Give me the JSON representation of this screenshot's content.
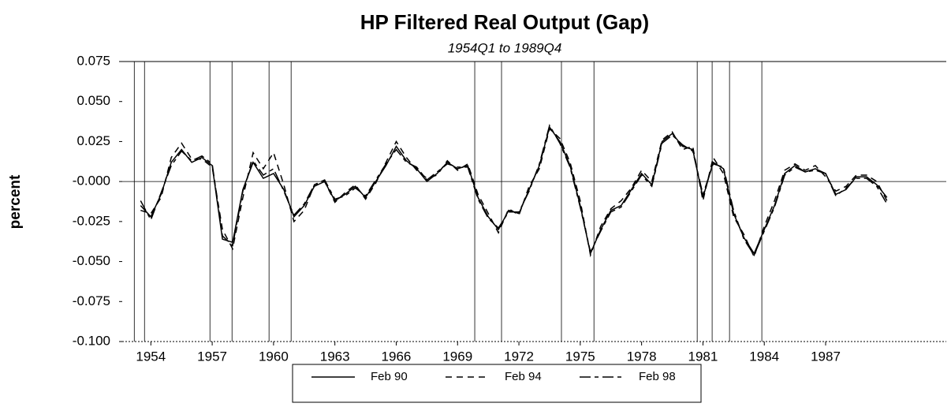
{
  "chart_data": {
    "type": "line",
    "title": "HP Filtered Real Output (Gap)",
    "subtitle": "1954Q1 to 1989Q4",
    "y_label": "percent",
    "x": [
      1953.5,
      1954,
      1954.5,
      1955,
      1955.5,
      1956,
      1956.5,
      1957,
      1957.5,
      1958,
      1958.5,
      1959,
      1959.5,
      1960,
      1960.5,
      1961,
      1961.5,
      1962,
      1962.5,
      1963,
      1963.5,
      1964,
      1964.5,
      1965,
      1965.5,
      1966,
      1966.5,
      1967,
      1967.5,
      1968,
      1968.5,
      1969,
      1969.5,
      1970,
      1970.5,
      1971,
      1971.5,
      1972,
      1972.5,
      1973,
      1973.5,
      1974,
      1974.5,
      1975,
      1975.5,
      1976,
      1976.5,
      1977,
      1977.5,
      1978,
      1978.5,
      1979,
      1979.5,
      1980,
      1980.5,
      1981,
      1981.5,
      1982,
      1982.5,
      1983,
      1983.5,
      1984,
      1984.5,
      1985,
      1985.5,
      1986,
      1986.5,
      1987,
      1987.5,
      1988,
      1988.5,
      1989,
      1989.5,
      1990
    ],
    "series": [
      {
        "name": "Feb 90",
        "color": "#000000",
        "dash": "solid",
        "values": [
          -0.015,
          -0.022,
          -0.008,
          0.012,
          0.02,
          0.012,
          0.015,
          0.01,
          -0.036,
          -0.038,
          -0.005,
          0.012,
          0.002,
          0.005,
          -0.005,
          -0.022,
          -0.015,
          -0.003,
          0.0,
          -0.012,
          -0.008,
          -0.003,
          -0.01,
          0.0,
          0.01,
          0.022,
          0.013,
          0.008,
          0.0,
          0.005,
          0.012,
          0.008,
          0.01,
          -0.01,
          -0.022,
          -0.03,
          -0.018,
          -0.02,
          -0.005,
          0.01,
          0.034,
          0.025,
          0.01,
          -0.015,
          -0.045,
          -0.03,
          -0.018,
          -0.015,
          -0.005,
          0.005,
          -0.002,
          0.025,
          0.03,
          0.022,
          0.02,
          -0.01,
          0.012,
          0.008,
          -0.02,
          -0.035,
          -0.045,
          -0.03,
          -0.015,
          0.005,
          0.01,
          0.006,
          0.008,
          0.005,
          -0.008,
          -0.005,
          0.003,
          0.003,
          -0.002,
          -0.01
        ]
      },
      {
        "name": "Feb 94",
        "color": "#000000",
        "dash": "dashed",
        "values": [
          -0.018,
          -0.02,
          -0.01,
          0.015,
          0.024,
          0.014,
          0.014,
          0.009,
          -0.03,
          -0.042,
          -0.01,
          0.018,
          0.008,
          0.018,
          -0.002,
          -0.025,
          -0.018,
          -0.002,
          0.0,
          -0.013,
          -0.007,
          -0.002,
          -0.011,
          -0.001,
          0.012,
          0.025,
          0.015,
          0.007,
          0.002,
          0.004,
          0.013,
          0.007,
          0.011,
          -0.008,
          -0.02,
          -0.032,
          -0.017,
          -0.021,
          -0.003,
          0.008,
          0.033,
          0.027,
          0.012,
          -0.012,
          -0.046,
          -0.028,
          -0.017,
          -0.012,
          -0.004,
          0.007,
          0.0,
          0.026,
          0.031,
          0.02,
          0.022,
          -0.012,
          0.015,
          0.005,
          -0.022,
          -0.033,
          -0.047,
          -0.028,
          -0.012,
          0.007,
          0.011,
          0.007,
          0.01,
          0.003,
          -0.006,
          -0.003,
          0.004,
          0.004,
          0.0,
          -0.012
        ]
      },
      {
        "name": "Feb 98",
        "color": "#000000",
        "dash": "longdash",
        "values": [
          -0.012,
          -0.024,
          -0.007,
          0.01,
          0.019,
          0.013,
          0.016,
          0.011,
          -0.034,
          -0.04,
          -0.006,
          0.013,
          0.004,
          0.008,
          -0.006,
          -0.021,
          -0.014,
          -0.002,
          0.001,
          -0.011,
          -0.009,
          -0.004,
          -0.009,
          0.001,
          0.011,
          0.02,
          0.012,
          0.009,
          0.001,
          0.006,
          0.011,
          0.009,
          0.009,
          -0.011,
          -0.023,
          -0.029,
          -0.019,
          -0.019,
          -0.006,
          0.011,
          0.035,
          0.024,
          0.009,
          -0.016,
          -0.044,
          -0.031,
          -0.019,
          -0.016,
          -0.006,
          0.004,
          -0.003,
          0.024,
          0.029,
          0.023,
          0.019,
          -0.008,
          0.011,
          0.009,
          -0.018,
          -0.036,
          -0.046,
          -0.031,
          -0.016,
          0.004,
          0.009,
          0.006,
          0.007,
          0.005,
          -0.009,
          -0.004,
          0.002,
          0.002,
          -0.003,
          -0.014
        ]
      }
    ],
    "shaded_periods": [
      [
        1953.19,
        1953.69
      ],
      [
        1956.89,
        1957.97
      ],
      [
        1959.78,
        1960.86
      ],
      [
        1969.84,
        1971.15
      ],
      [
        1974.08,
        1975.67
      ],
      [
        1980.72,
        1981.45
      ],
      [
        1982.3,
        1983.88
      ]
    ],
    "xlim": [
      1952.6,
      1992.9
    ],
    "xticks": [
      1954,
      1957,
      1960,
      1963,
      1966,
      1969,
      1972,
      1975,
      1978,
      1981,
      1984,
      1987
    ],
    "ylim": [
      -0.1,
      0.075
    ],
    "yticks": [
      -0.1,
      {
        "value": -0.1,
        "label": "-0.100"
      },
      -0.075,
      {
        "value": -0.05,
        "label": "-0.050"
      },
      -0.025,
      {
        "value": 0,
        "label": "-0.000"
      },
      0.025,
      {
        "value": 0.05,
        "label": "0.050"
      },
      0.075
    ],
    "legend": "bottom"
  }
}
